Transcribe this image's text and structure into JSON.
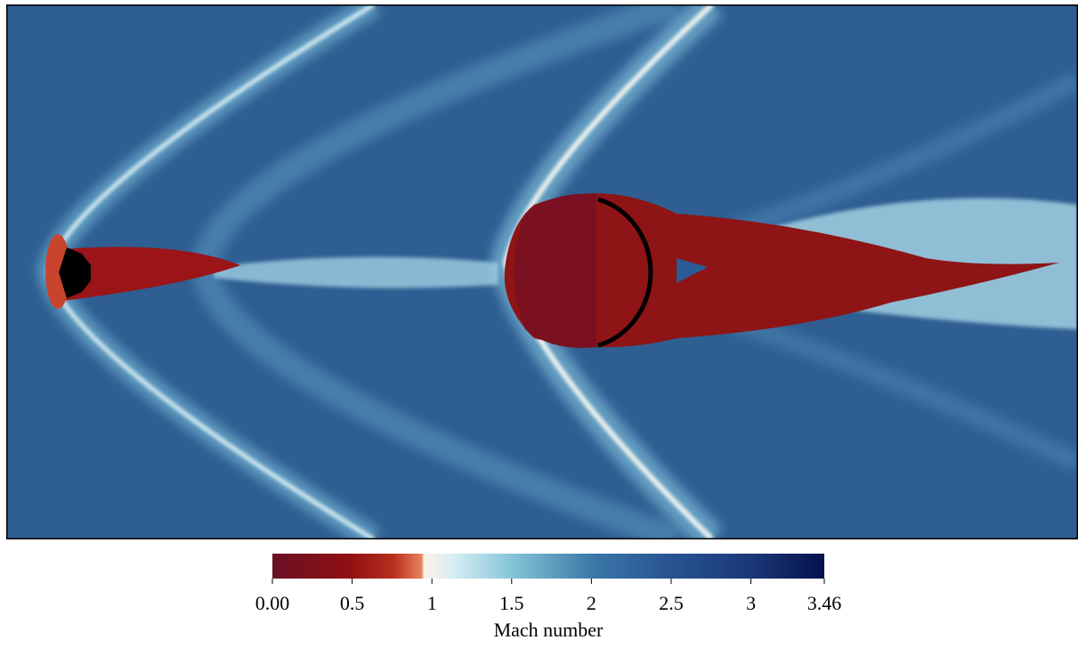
{
  "chart_data": {
    "type": "colorbar",
    "label": "Mach number",
    "clim": [
      0,
      3.46
    ],
    "ticks": [
      {
        "value": 0,
        "label": "0.00"
      },
      0.5,
      1,
      1.5,
      2,
      2.5,
      3,
      3.46
    ]
  }
}
